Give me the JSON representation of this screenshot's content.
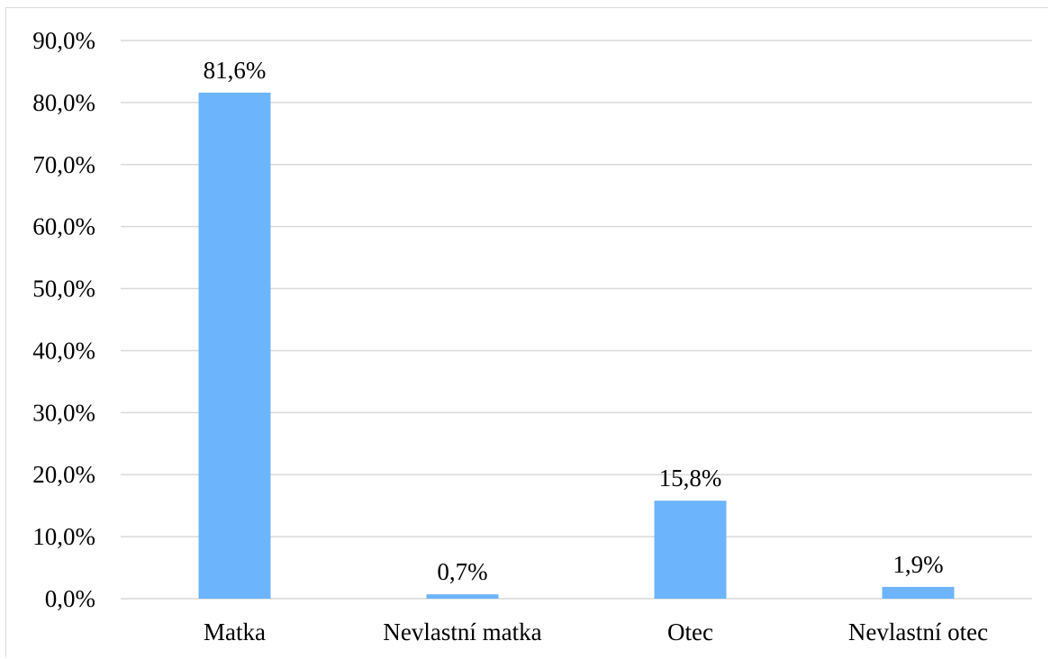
{
  "chart_data": {
    "type": "bar",
    "categories": [
      "Matka",
      "Nevlastní matka",
      "Otec",
      "Nevlastní otec"
    ],
    "values": [
      81.6,
      0.7,
      15.8,
      1.9
    ],
    "data_labels": [
      "81,6%",
      "0,7%",
      "15,8%",
      "1,9%"
    ],
    "ylim": [
      0,
      90
    ],
    "y_ticks": [
      0,
      10,
      20,
      30,
      40,
      50,
      60,
      70,
      80,
      90
    ],
    "y_tick_labels": [
      "0,0%",
      "10,0%",
      "20,0%",
      "30,0%",
      "40,0%",
      "50,0%",
      "60,0%",
      "70,0%",
      "80,0%",
      "90,0%"
    ],
    "grid": true,
    "legend": "none",
    "bar_color": "#6cb4fc"
  }
}
